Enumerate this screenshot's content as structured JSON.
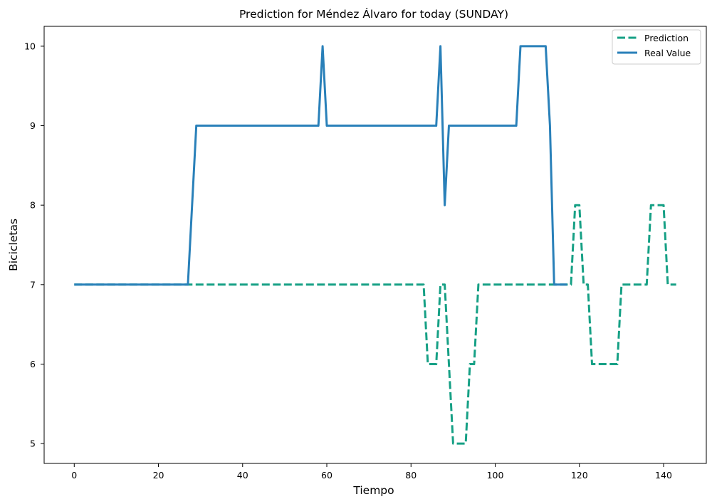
{
  "chart_data": {
    "type": "line",
    "title": "Prediction for Méndez Álvaro for today (SUNDAY)",
    "xlabel": "Tiempo",
    "ylabel": "Bicicletas",
    "xlim": [
      -7.15,
      150.15
    ],
    "ylim": [
      4.75,
      10.25
    ],
    "xticks": [
      0,
      20,
      40,
      60,
      80,
      100,
      120,
      140
    ],
    "yticks": [
      5,
      6,
      7,
      8,
      9,
      10
    ],
    "grid": false,
    "legend_position": "top-right",
    "series": [
      {
        "name": "Prediction",
        "color": "#16a085",
        "style": "dashed",
        "points": [
          [
            0,
            7
          ],
          [
            83,
            7
          ],
          [
            84,
            6
          ],
          [
            85,
            6
          ],
          [
            86,
            6
          ],
          [
            87,
            7
          ],
          [
            88,
            7
          ],
          [
            89,
            6
          ],
          [
            90,
            5
          ],
          [
            91,
            5
          ],
          [
            92,
            5
          ],
          [
            93,
            5
          ],
          [
            94,
            6
          ],
          [
            95,
            6
          ],
          [
            96,
            7
          ],
          [
            118,
            7
          ],
          [
            119,
            8
          ],
          [
            120,
            8
          ],
          [
            121,
            7
          ],
          [
            122,
            7
          ],
          [
            123,
            6
          ],
          [
            124,
            6
          ],
          [
            125,
            6
          ],
          [
            126,
            6
          ],
          [
            127,
            6
          ],
          [
            128,
            6
          ],
          [
            129,
            6
          ],
          [
            130,
            7
          ],
          [
            136,
            7
          ],
          [
            137,
            8
          ],
          [
            138,
            8
          ],
          [
            139,
            8
          ],
          [
            140,
            8
          ],
          [
            141,
            7
          ],
          [
            143,
            7
          ]
        ]
      },
      {
        "name": "Real Value",
        "color": "#2980b9",
        "style": "solid",
        "points": [
          [
            0,
            7
          ],
          [
            27,
            7
          ],
          [
            29,
            9
          ],
          [
            58,
            9
          ],
          [
            59,
            10
          ],
          [
            60,
            9
          ],
          [
            86,
            9
          ],
          [
            87,
            10
          ],
          [
            88,
            8
          ],
          [
            89,
            9
          ],
          [
            105,
            9
          ],
          [
            106,
            10
          ],
          [
            112,
            10
          ],
          [
            113,
            9
          ],
          [
            114,
            7
          ],
          [
            117,
            7
          ]
        ]
      }
    ]
  }
}
